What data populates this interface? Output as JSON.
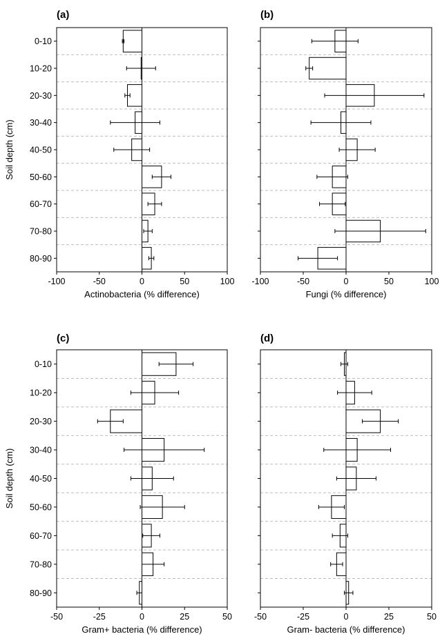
{
  "chart_data": [
    {
      "type": "bar",
      "orientation": "horizontal",
      "panel_label": "(a)",
      "categories": [
        "0-10",
        "10-20",
        "20-30",
        "30-40",
        "40-50",
        "50-60",
        "60-70",
        "70-80",
        "80-90"
      ],
      "values": [
        -22,
        -1,
        -17,
        -8,
        -12,
        23,
        15,
        7,
        11
      ],
      "errors": [
        1,
        17,
        3,
        29,
        21,
        11,
        8,
        5,
        3
      ],
      "xlabel": "Actinobacteria (% difference)",
      "ylabel": "Soil depth (cm)",
      "xlim": [
        -100,
        100
      ],
      "xticks": [
        -100,
        -50,
        0,
        50,
        100
      ],
      "grid": "horizontal dashed lines between categories"
    },
    {
      "type": "bar",
      "orientation": "horizontal",
      "panel_label": "(b)",
      "categories": [
        "0-10",
        "10-20",
        "20-30",
        "30-40",
        "40-50",
        "50-60",
        "60-70",
        "70-80",
        "80-90"
      ],
      "values": [
        -13,
        -43,
        33,
        -6,
        13,
        -16,
        -16,
        40,
        -33
      ],
      "errors": [
        27,
        4,
        58,
        35,
        21,
        18,
        15,
        53,
        23
      ],
      "xlabel": "Fungi (% difference)",
      "ylabel": "",
      "xlim": [
        -100,
        100
      ],
      "xticks": [
        -100,
        -50,
        0,
        50,
        100
      ],
      "grid": "horizontal dashed lines between categories"
    },
    {
      "type": "bar",
      "orientation": "horizontal",
      "panel_label": "(c)",
      "categories": [
        "0-10",
        "10-20",
        "20-30",
        "30-40",
        "40-50",
        "50-60",
        "60-70",
        "70-80",
        "80-90"
      ],
      "values": [
        20,
        7.5,
        -18.5,
        13,
        6,
        12,
        5.5,
        6.5,
        -1.5
      ],
      "errors": [
        10,
        14,
        7.5,
        23.5,
        12.5,
        13,
        5,
        6.5,
        1.5
      ],
      "xlabel": "Gram+ bacteria (% difference)",
      "ylabel": "Soil depth (cm)",
      "xlim": [
        -50,
        50
      ],
      "xticks": [
        -50,
        -25,
        0,
        25,
        50
      ],
      "grid": "horizontal dashed lines between categories"
    },
    {
      "type": "bar",
      "orientation": "horizontal",
      "panel_label": "(d)",
      "categories": [
        "0-10",
        "10-20",
        "20-30",
        "30-40",
        "40-50",
        "50-60",
        "60-70",
        "70-80",
        "80-90"
      ],
      "values": [
        -1,
        5,
        20,
        6.5,
        6,
        -8.5,
        -3.5,
        -5.5,
        1.5
      ],
      "errors": [
        2,
        10,
        10.5,
        19.5,
        11.5,
        7.5,
        4.5,
        3.5,
        2.5
      ],
      "xlabel": "Gram- bacteria (% difference)",
      "ylabel": "",
      "xlim": [
        -50,
        50
      ],
      "xticks": [
        -50,
        -25,
        0,
        25,
        50
      ],
      "grid": "horizontal dashed lines between categories"
    }
  ]
}
